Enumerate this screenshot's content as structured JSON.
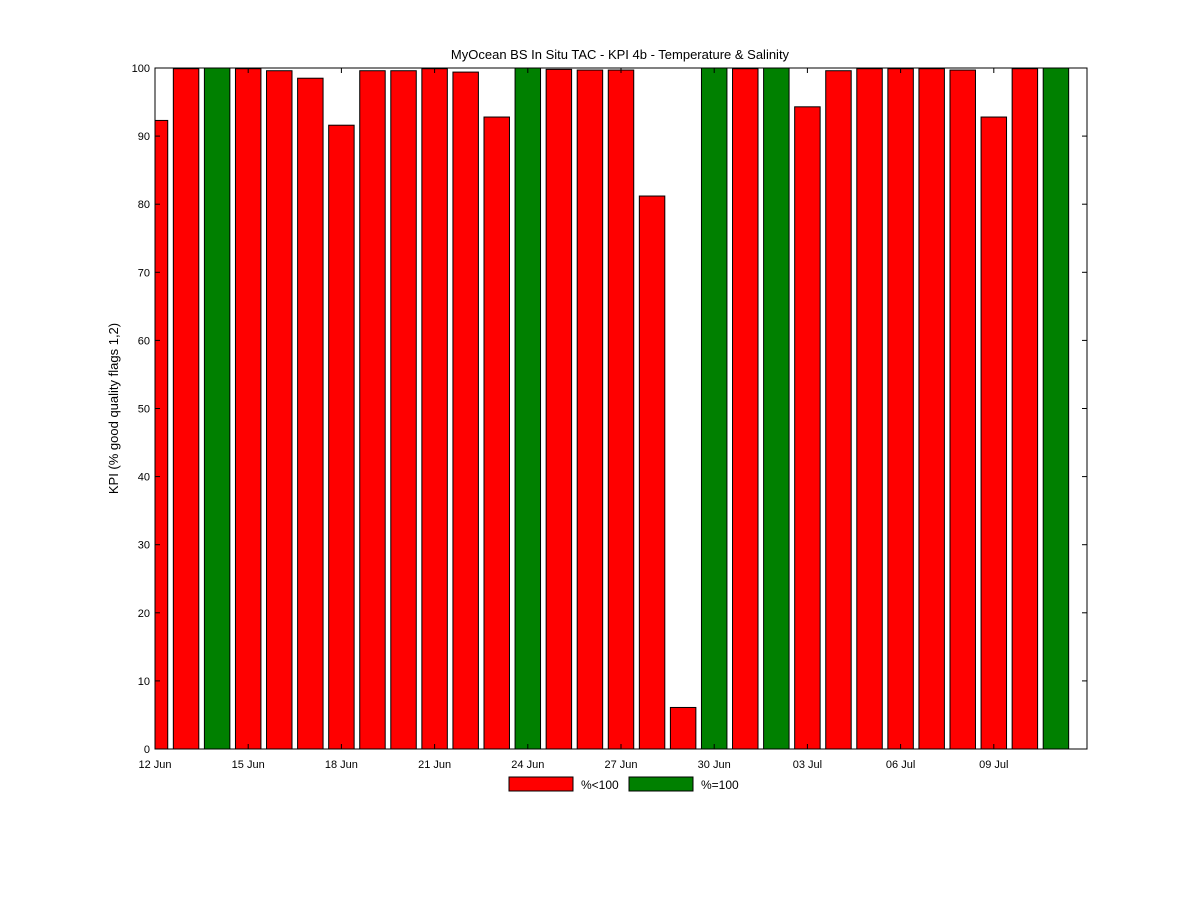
{
  "chart_data": {
    "type": "bar",
    "title": "MyOcean  BS In Situ TAC - KPI 4b - Temperature & Salinity",
    "xlabel": "",
    "ylabel": "KPI (% good quality flags 1,2)",
    "ylim": [
      0,
      100
    ],
    "yticks": [
      0,
      10,
      20,
      30,
      40,
      50,
      60,
      70,
      80,
      90,
      100
    ],
    "xlim": [
      12,
      42
    ],
    "xtick_positions": [
      12,
      15,
      18,
      21,
      24,
      27,
      30,
      33,
      36,
      39
    ],
    "xtick_labels": [
      "12 Jun",
      "15 Jun",
      "18 Jun",
      "21 Jun",
      "24 Jun",
      "27 Jun",
      "30 Jun",
      "03 Jul",
      "06 Jul",
      "09 Jul"
    ],
    "grid": false,
    "legend": {
      "placement": "bottom-center",
      "entries": [
        {
          "label": "%<100",
          "color": "#ff0000"
        },
        {
          "label": "%=100",
          "color": "#008000"
        }
      ]
    },
    "categories": [
      "12 Jun",
      "13 Jun",
      "14 Jun",
      "15 Jun",
      "16 Jun",
      "17 Jun",
      "18 Jun",
      "19 Jun",
      "20 Jun",
      "21 Jun",
      "22 Jun",
      "23 Jun",
      "24 Jun",
      "25 Jun",
      "26 Jun",
      "27 Jun",
      "28 Jun",
      "29 Jun",
      "30 Jun",
      "01 Jul",
      "02 Jul",
      "03 Jul",
      "04 Jul",
      "05 Jul",
      "06 Jul",
      "07 Jul",
      "08 Jul",
      "09 Jul",
      "10 Jul",
      "11 Jul"
    ],
    "x": [
      12,
      13,
      14,
      15,
      16,
      17,
      18,
      19,
      20,
      21,
      22,
      23,
      24,
      25,
      26,
      27,
      28,
      29,
      30,
      31,
      32,
      33,
      34,
      35,
      36,
      37,
      38,
      39,
      40,
      41
    ],
    "values": [
      92.3,
      99.9,
      100,
      99.9,
      99.6,
      98.5,
      91.6,
      99.6,
      99.6,
      99.9,
      99.4,
      92.8,
      100,
      99.8,
      99.7,
      99.7,
      81.2,
      6.1,
      100,
      99.9,
      100,
      94.3,
      99.6,
      99.9,
      99.9,
      99.9,
      99.7,
      92.8,
      99.9,
      100
    ]
  }
}
